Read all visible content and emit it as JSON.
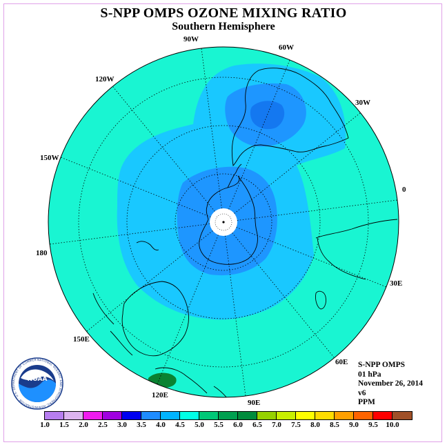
{
  "title": "S-NPP OMPS OZONE MIXING RATIO",
  "subtitle": "Southern Hemisphere",
  "info": {
    "instrument": "S-NPP OMPS",
    "pressure": "01 hPa",
    "date": "November 26, 2014",
    "version": "v6",
    "units": "PPM"
  },
  "longitude_labels": [
    "0",
    "30E",
    "60E",
    "90E",
    "120E",
    "150E",
    "180",
    "150W",
    "120W",
    "90W",
    "60W",
    "30W"
  ],
  "colorbar": {
    "labels": [
      "1.0",
      "1.5",
      "2.0",
      "2.5",
      "3.0",
      "3.5",
      "4.0",
      "4.5",
      "5.0",
      "5.5",
      "6.0",
      "6.5",
      "7.0",
      "7.5",
      "8.0",
      "8.5",
      "9.0",
      "9.5",
      "10.0"
    ],
    "colors": [
      "#b77ef0",
      "#dcb4f0",
      "#f01cf0",
      "#a000e0",
      "#0000f0",
      "#1e8cff",
      "#00b4ff",
      "#00ffe6",
      "#00c878",
      "#00a050",
      "#008c3c",
      "#96d200",
      "#c8f000",
      "#ffff00",
      "#ffdc00",
      "#ffa000",
      "#ff6400",
      "#ff0000",
      "#a05028"
    ]
  },
  "contour_colors": {
    "background": "#19f5d2",
    "level_4_0": "#19c8ff",
    "level_3_5": "#1e96ff",
    "level_3_0": "#1478f0",
    "level_5_5": "#0a8232"
  },
  "logo": {
    "text": "NOAA",
    "ring_text": "NATIONAL OCEANIC AND ATMOSPHERIC ADMINISTRATION · U.S. DEPARTMENT OF COMMERCE"
  }
}
